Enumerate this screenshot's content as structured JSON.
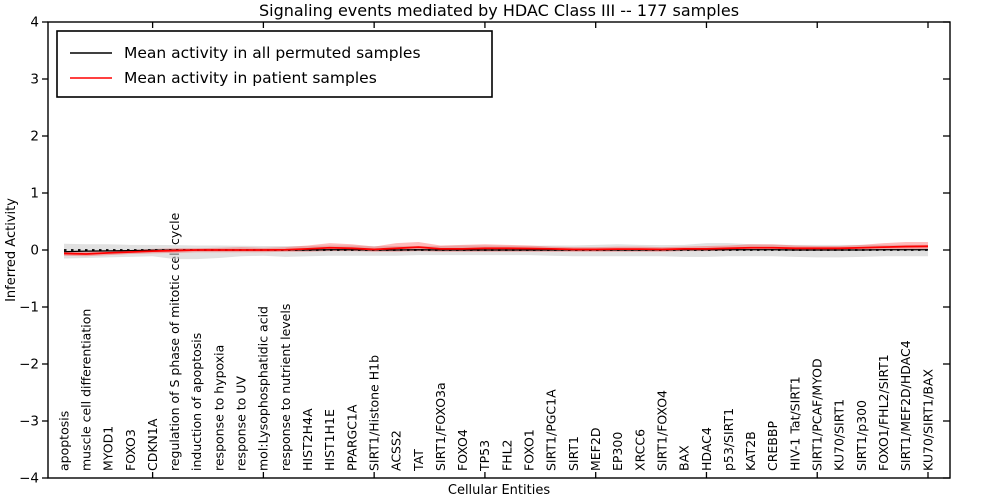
{
  "figure": {
    "title": "Signaling events mediated by HDAC Class III -- 177 samples"
  },
  "axes": {
    "ylabel": "Inferred Activity",
    "xlabel": "Cellular Entities",
    "ytick_labels": [
      "4",
      "3",
      "2",
      "1",
      "0",
      "−1",
      "−2",
      "−3",
      "−4"
    ],
    "ytick_values": [
      4,
      3,
      2,
      1,
      0,
      -1,
      -2,
      -3,
      -4
    ],
    "x_major_tick_entities": [
      4,
      9,
      14,
      19,
      24,
      29,
      34,
      39
    ]
  },
  "legend": {
    "entries": [
      {
        "label": "Mean activity in all permuted samples",
        "color": "#000000"
      },
      {
        "label": "Mean activity in patient samples",
        "color": "#ff0000"
      }
    ]
  },
  "entities": [
    "apoptosis",
    "muscle cell differentiation",
    "MYOD1",
    "FOXO3",
    "CDKN1A",
    "regulation of S phase of mitotic cell cycle",
    "induction of apoptosis",
    "response to hypoxia",
    "response to UV",
    "mol:Lysophosphatidic acid",
    "response to nutrient levels",
    "HIST2H4A",
    "HIST1H1E",
    "PPARGC1A",
    "SIRT1/Histone H1b",
    "ACSS2",
    "TAT",
    "SIRT1/FOXO3a",
    "FOXO4",
    "TP53",
    "FHL2",
    "FOXO1",
    "SIRT1/PGC1A",
    "SIRT1",
    "MEF2D",
    "EP300",
    "XRCC6",
    "SIRT1/FOXO4",
    "BAX",
    "HDAC4",
    "p53/SIRT1",
    "KAT2B",
    "CREBBP",
    "HIV-1 Tat/SIRT1",
    "SIRT1/PCAF/MYOD",
    "KU70/SIRT1",
    "SIRT1/p300",
    "FOXO1/FHL2/SIRT1",
    "SIRT1/MEF2D/HDAC4",
    "KU70/SIRT1/BAX"
  ],
  "chart_data": {
    "type": "line",
    "title": "Signaling events mediated by HDAC Class III -- 177 samples",
    "xlabel": "Cellular Entities",
    "ylabel": "Inferred Activity",
    "ylim": [
      -4,
      4
    ],
    "grid": false,
    "legend_position": "upper left",
    "categories": [
      "apoptosis",
      "muscle cell differentiation",
      "MYOD1",
      "FOXO3",
      "CDKN1A",
      "regulation of S phase of mitotic cell cycle",
      "induction of apoptosis",
      "response to hypoxia",
      "response to UV",
      "mol:Lysophosphatidic acid",
      "response to nutrient levels",
      "HIST2H4A",
      "HIST1H1E",
      "PPARGC1A",
      "SIRT1/Histone H1b",
      "ACSS2",
      "TAT",
      "SIRT1/FOXO3a",
      "FOXO4",
      "TP53",
      "FHL2",
      "FOXO1",
      "SIRT1/PGC1A",
      "SIRT1",
      "MEF2D",
      "EP300",
      "XRCC6",
      "SIRT1/FOXO4",
      "BAX",
      "HDAC4",
      "p53/SIRT1",
      "KAT2B",
      "CREBBP",
      "HIV-1 Tat/SIRT1",
      "SIRT1/PCAF/MYOD",
      "KU70/SIRT1",
      "SIRT1/p300",
      "FOXO1/FHL2/SIRT1",
      "SIRT1/MEF2D/HDAC4",
      "KU70/SIRT1/BAX"
    ],
    "series": [
      {
        "name": "Mean activity in all permuted samples",
        "color": "#000000",
        "style": "solid",
        "values": [
          -0.03,
          -0.02,
          -0.015,
          -0.01,
          -0.005,
          0,
          0,
          0,
          0,
          0,
          0,
          0,
          0.005,
          0.005,
          0,
          0,
          0.005,
          0,
          0,
          0,
          0,
          0,
          0,
          0,
          0,
          0,
          0,
          0,
          0.005,
          0.005,
          0.005,
          0.005,
          0.005,
          0,
          0,
          0,
          0,
          0.005,
          0.005,
          0.005
        ]
      },
      {
        "name": "Mean activity in patient samples",
        "color": "#ff0000",
        "style": "solid",
        "values": [
          -0.06,
          -0.07,
          -0.05,
          -0.035,
          -0.02,
          -0.01,
          0,
          0,
          0,
          0,
          0.005,
          0.02,
          0.04,
          0.03,
          0.01,
          0.03,
          0.05,
          0.02,
          0.02,
          0.03,
          0.03,
          0.025,
          0.02,
          0.01,
          0.01,
          0.015,
          0.015,
          0.01,
          0.02,
          0.02,
          0.03,
          0.04,
          0.04,
          0.03,
          0.03,
          0.03,
          0.04,
          0.05,
          0.06,
          0.065
        ]
      }
    ],
    "bands": [
      {
        "name": "permuted-samples-range",
        "color": "#c9c9c9",
        "opacity": 0.55,
        "hi": [
          0.11,
          0.1,
          0.1,
          0.09,
          0.09,
          0.085,
          0.08,
          0.08,
          0.075,
          0.07,
          0.07,
          0.07,
          0.08,
          0.08,
          0.07,
          0.07,
          0.07,
          0.07,
          0.08,
          0.08,
          0.075,
          0.075,
          0.08,
          0.08,
          0.09,
          0.1,
          0.09,
          0.085,
          0.09,
          0.12,
          0.12,
          0.1,
          0.095,
          0.09,
          0.09,
          0.09,
          0.09,
          0.09,
          0.09,
          0.09
        ],
        "lo": [
          -0.15,
          -0.14,
          -0.13,
          -0.12,
          -0.11,
          -0.16,
          -0.16,
          -0.14,
          -0.11,
          -0.1,
          -0.12,
          -0.11,
          -0.1,
          -0.1,
          -0.1,
          -0.1,
          -0.09,
          -0.09,
          -0.09,
          -0.09,
          -0.09,
          -0.09,
          -0.1,
          -0.11,
          -0.11,
          -0.11,
          -0.11,
          -0.11,
          -0.12,
          -0.12,
          -0.11,
          -0.11,
          -0.11,
          -0.12,
          -0.13,
          -0.13,
          -0.12,
          -0.11,
          -0.11,
          -0.11
        ]
      },
      {
        "name": "patient-samples-range",
        "color": "#ff0000",
        "opacity": 0.27,
        "hi": [
          -0.02,
          -0.03,
          -0.01,
          0.0,
          0.02,
          0.03,
          0.03,
          0.04,
          0.05,
          0.04,
          0.05,
          0.08,
          0.12,
          0.1,
          0.06,
          0.12,
          0.14,
          0.08,
          0.09,
          0.1,
          0.09,
          0.08,
          0.06,
          0.05,
          0.05,
          0.06,
          0.06,
          0.05,
          0.06,
          0.07,
          0.08,
          0.1,
          0.1,
          0.08,
          0.07,
          0.07,
          0.09,
          0.12,
          0.14,
          0.14
        ],
        "lo": [
          -0.1,
          -0.11,
          -0.09,
          -0.07,
          -0.06,
          -0.05,
          -0.04,
          -0.04,
          -0.04,
          -0.04,
          -0.03,
          -0.03,
          -0.02,
          -0.02,
          -0.03,
          -0.03,
          -0.02,
          -0.03,
          -0.03,
          -0.03,
          -0.03,
          -0.03,
          -0.03,
          -0.03,
          -0.03,
          -0.03,
          -0.03,
          -0.03,
          -0.02,
          -0.02,
          -0.01,
          0.0,
          0.0,
          -0.01,
          -0.01,
          -0.01,
          0.0,
          0.0,
          0.01,
          0.01
        ]
      }
    ],
    "zero_line": {
      "value": 0,
      "color": "#000000",
      "style": "dotted"
    }
  },
  "colors": {
    "permuted_line": "#000000",
    "patient_line": "#ff0000",
    "permuted_band": "#c9c9c9",
    "patient_band": "#ff0000",
    "background": "#ffffff"
  }
}
